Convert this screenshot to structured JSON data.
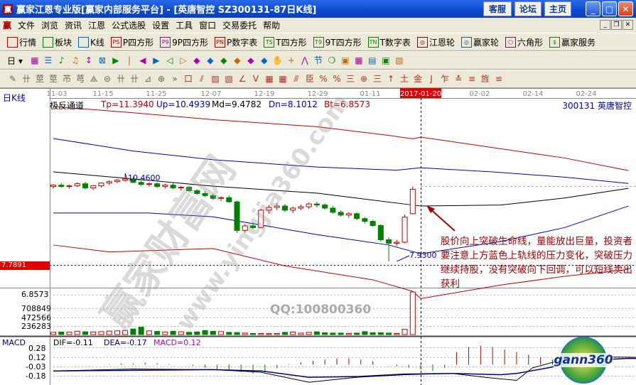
{
  "window": {
    "title": "赢家江恩专业版[赢家内部服务平台] - [英唐智控   SZ300131-87日K线]",
    "buttons": [
      "客服",
      "论坛",
      "主页"
    ]
  },
  "menu": {
    "logo": "赢",
    "items": [
      "文件",
      "浏览",
      "资讯",
      "江恩",
      "公式选股",
      "设置",
      "工具",
      "窗口",
      "交易委托",
      "帮助"
    ]
  },
  "toolbar1": [
    {
      "icon": "quote-table-icon",
      "label": "行情"
    },
    {
      "icon": "sector-blocks-icon",
      "label": "板块"
    },
    {
      "icon": "kline-icon",
      "label": "K线"
    },
    {
      "icon": "p-square-icon",
      "glyph": "PS",
      "label": "P四方形"
    },
    {
      "icon": "9p-square-icon",
      "glyph": "P9",
      "label": "9P四方形"
    },
    {
      "icon": "p-number-table-icon",
      "glyph": "PN",
      "label": "P数字表"
    },
    {
      "icon": "t-square-icon",
      "glyph": "TS",
      "label": "T四方形"
    },
    {
      "icon": "9t-square-icon",
      "glyph": "T9",
      "label": "9T四方形"
    },
    {
      "icon": "t-number-table-icon",
      "glyph": "TN",
      "label": "T数字表"
    },
    {
      "icon": "gann-wheel-icon",
      "glyph": "◎",
      "label": "江恩轮"
    },
    {
      "icon": "yingjia-wheel-icon",
      "glyph": "◎",
      "label": "赢家轮"
    },
    {
      "icon": "hexagon-icon",
      "glyph": "⬡",
      "label": "六角形"
    },
    {
      "icon": "dollar-icon",
      "glyph": "$",
      "label": "赢家服务"
    }
  ],
  "toolbar2": {
    "period": "日",
    "icons": [
      "chart-type-icon",
      "list-icon",
      "indicator-icon",
      "indicator2-icon",
      "candle-select-icon",
      "formula-icon",
      "flag-icon",
      "first-icon",
      "last-icon",
      "left-icon",
      "right-icon",
      "zoom-in-icon",
      "zoom-out-icon",
      "expand-icon",
      "shrink-icon",
      "fit-icon",
      "reset-icon",
      "hand-icon",
      "crosshair-icon",
      "draw-line-icon",
      "section-icon",
      "cycle-icon",
      "calendar-icon",
      "calculator-icon",
      "notes-icon",
      "save-icon",
      "export-icon",
      "print-icon"
    ]
  },
  "toolbar3": {
    "icons": [
      "pen-icon",
      "parallel-icon",
      "gann-fan-icon",
      "gann-fan2-icon",
      "fib-icon",
      "spiral-icon",
      "pitchfork-icon",
      "circle-icon",
      "grid-icon",
      "square-n2-icon",
      "angle-icon",
      "target-icon",
      "more-icon",
      "box-icon",
      "fan-lines-icon",
      "gann-box-icon",
      "gann-grid-icon",
      "ray-icon",
      "wave-icon",
      "table-grid-icon",
      "table-grid2-icon",
      "channel-icon",
      "ruler-icon",
      "percent-line-icon",
      "percent-icon",
      "percent-rule-icon",
      "gold-circle-icon",
      "gold-line-icon",
      "arrow-up-icon",
      "gold-ratio-icon",
      "gold-icon",
      "j-line-icon",
      "f-line-icon",
      "multi-line-icon",
      "speed-line-icon",
      "gann-angle-icon",
      "arc-icon"
    ]
  },
  "dates": [
    "11-03",
    "11-15",
    "11-25",
    "12-07",
    "12-19",
    "12-29",
    "01-11",
    "2017-01-20",
    "02-02",
    "02-14",
    "02-24"
  ],
  "chart": {
    "period_label": "日K线",
    "indicator_name": "极反通道",
    "tp": "Tp=11.3940",
    "up": "Up=10.4939",
    "md": "Md=9.4782",
    "dn": "Dn=8.1012",
    "bt": "Bt=6.8573",
    "stock": "300131  英唐智控",
    "high_label": "10.4600",
    "low_label": "7.9300",
    "cursor_price": "7.7891",
    "cursor_date": "2017-01-20",
    "colors": {
      "up": "#c00000",
      "down": "#008000",
      "tp": "#c00000",
      "upper": "#0000c0",
      "mid": "#000000",
      "lower": "#0000c0",
      "bt": "#c00000"
    }
  },
  "candles": [
    [
      10.08,
      10.15,
      10.02,
      10.12
    ],
    [
      10.12,
      10.18,
      10.05,
      10.08
    ],
    [
      10.08,
      10.14,
      10.03,
      10.1
    ],
    [
      10.1,
      10.2,
      10.06,
      10.16
    ],
    [
      10.16,
      10.22,
      10.0,
      10.04
    ],
    [
      10.04,
      10.12,
      9.98,
      10.1
    ],
    [
      10.1,
      10.2,
      10.05,
      10.18
    ],
    [
      10.18,
      10.26,
      10.12,
      10.22
    ],
    [
      10.22,
      10.3,
      10.18,
      10.26
    ],
    [
      10.26,
      10.46,
      10.22,
      10.3
    ],
    [
      10.3,
      10.36,
      10.18,
      10.2
    ],
    [
      10.2,
      10.26,
      10.1,
      10.14
    ],
    [
      10.14,
      10.2,
      10.08,
      10.16
    ],
    [
      10.16,
      10.2,
      10.04,
      10.08
    ],
    [
      10.08,
      10.16,
      10.02,
      10.12
    ],
    [
      10.12,
      10.18,
      10.0,
      10.04
    ],
    [
      10.04,
      10.1,
      9.96,
      10.06
    ],
    [
      10.06,
      10.1,
      9.92,
      9.96
    ],
    [
      9.96,
      10.0,
      9.84,
      9.88
    ],
    [
      9.88,
      9.95,
      9.78,
      9.82
    ],
    [
      9.82,
      9.88,
      9.7,
      9.74
    ],
    [
      9.74,
      9.8,
      9.66,
      9.76
    ],
    [
      9.76,
      9.82,
      9.62,
      9.64
    ],
    [
      9.64,
      9.68,
      8.75,
      8.82
    ],
    [
      8.82,
      9.0,
      8.75,
      8.95
    ],
    [
      8.95,
      9.05,
      8.85,
      8.9
    ],
    [
      8.9,
      9.45,
      8.88,
      9.4
    ],
    [
      9.4,
      9.55,
      9.3,
      9.48
    ],
    [
      9.48,
      9.6,
      9.4,
      9.52
    ],
    [
      9.52,
      9.58,
      9.35,
      9.4
    ],
    [
      9.4,
      9.5,
      9.32,
      9.46
    ],
    [
      9.46,
      9.56,
      9.4,
      9.5
    ],
    [
      9.5,
      9.62,
      9.44,
      9.58
    ],
    [
      9.58,
      9.64,
      9.48,
      9.55
    ],
    [
      9.55,
      9.6,
      9.42,
      9.46
    ],
    [
      9.46,
      9.52,
      9.3,
      9.34
    ],
    [
      9.34,
      9.4,
      9.22,
      9.26
    ],
    [
      9.26,
      9.34,
      9.18,
      9.3
    ],
    [
      9.3,
      9.34,
      9.12,
      9.16
    ],
    [
      9.16,
      9.2,
      9.02,
      9.08
    ],
    [
      9.08,
      9.12,
      8.92,
      8.96
    ],
    [
      8.96,
      9.0,
      8.5,
      8.55
    ],
    [
      8.55,
      8.62,
      7.93,
      8.45
    ],
    [
      8.45,
      8.55,
      8.38,
      8.48
    ],
    [
      8.48,
      9.28,
      8.45,
      9.2
    ],
    [
      9.3,
      10.08,
      9.28,
      10.0
    ]
  ],
  "channel": {
    "tp": [
      [
        0,
        12.38
      ],
      [
        10,
        12.2
      ],
      [
        20,
        12.0
      ],
      [
        33,
        11.8
      ],
      [
        42,
        11.55
      ],
      [
        45,
        11.45
      ],
      [
        46,
        11.5
      ],
      [
        55,
        11.2
      ],
      [
        64,
        10.9
      ],
      [
        72,
        10.54
      ]
    ],
    "up": [
      [
        0,
        11.46
      ],
      [
        10,
        11.1
      ],
      [
        20,
        10.85
      ],
      [
        33,
        10.64
      ],
      [
        43,
        10.55
      ],
      [
        46,
        10.62
      ],
      [
        55,
        10.5
      ],
      [
        64,
        10.35
      ],
      [
        72,
        10.17
      ]
    ],
    "md": [
      [
        0,
        10.5
      ],
      [
        10,
        10.3
      ],
      [
        20,
        10.09
      ],
      [
        33,
        9.89
      ],
      [
        46,
        9.52
      ],
      [
        56,
        9.55
      ],
      [
        64,
        9.75
      ],
      [
        72,
        10.03
      ]
    ],
    "dn": [
      [
        0,
        9.32
      ],
      [
        12,
        9.32
      ],
      [
        20,
        9.21
      ],
      [
        33,
        8.7
      ],
      [
        42,
        8.4
      ],
      [
        46,
        8.15
      ],
      [
        56,
        8.5
      ],
      [
        64,
        8.9
      ],
      [
        72,
        9.52
      ]
    ],
    "bt": [
      [
        0,
        8.4
      ],
      [
        7,
        8.2
      ],
      [
        20,
        8.3
      ],
      [
        29,
        7.8
      ],
      [
        40,
        7.4
      ],
      [
        45,
        7.07
      ],
      [
        46,
        6.86
      ],
      [
        56,
        7.25
      ],
      [
        64,
        7.5
      ],
      [
        72,
        7.7
      ]
    ]
  },
  "volume": {
    "ticks": [
      "708849",
      "472566",
      "236283"
    ],
    "bt_label": "6.8573",
    "values": [
      60000,
      70000,
      65000,
      90000,
      75000,
      70000,
      80000,
      95000,
      100000,
      110000,
      150000,
      200000,
      100000,
      85000,
      70000,
      90000,
      75000,
      60000,
      72000,
      110000,
      90000,
      80000,
      60000,
      55000,
      40000,
      30000,
      30000,
      25000,
      30000,
      60000,
      70000,
      40000,
      60000,
      75000,
      50000,
      40000,
      40000,
      30000,
      40000,
      80000,
      50000,
      50000,
      40000,
      30000,
      140000,
      1150000
    ]
  },
  "macd": {
    "label": "MACD",
    "dif": "DIF=-0.11",
    "dea": "DEA=-0.17",
    "macd": "MACD=0.12",
    "ticks": [
      "0.28",
      "0.12",
      "-0.03",
      "-0.18"
    ],
    "dif_line": [
      [
        0,
        -0.1
      ],
      [
        10,
        -0.07
      ],
      [
        20,
        -0.08
      ],
      [
        26,
        -0.12
      ],
      [
        32,
        -0.28
      ],
      [
        38,
        -0.2
      ],
      [
        44,
        -0.16
      ],
      [
        50,
        -0.14
      ],
      [
        54,
        -0.2
      ],
      [
        58,
        -0.25
      ],
      [
        60,
        -0.05
      ],
      [
        65,
        0.12
      ],
      [
        72,
        0.12
      ],
      [
        80,
        0.08
      ]
    ],
    "dea_line": [
      [
        0,
        -0.1
      ],
      [
        10,
        -0.09
      ],
      [
        20,
        -0.08
      ],
      [
        26,
        -0.1
      ],
      [
        32,
        -0.2
      ],
      [
        38,
        -0.19
      ],
      [
        44,
        -0.15
      ],
      [
        50,
        -0.14
      ],
      [
        56,
        -0.16
      ],
      [
        58,
        -0.14
      ],
      [
        62,
        -0.05
      ],
      [
        66,
        0.06
      ],
      [
        72,
        0.1
      ],
      [
        80,
        0.08
      ]
    ],
    "hist": [
      0,
      0,
      0.01,
      0.02,
      0.02,
      0.03,
      0.02,
      0.01,
      0,
      -0.02,
      -0.05,
      -0.08,
      -0.1,
      -0.12,
      -0.14,
      -0.12,
      -0.06,
      0.01,
      0.04,
      0.06,
      0.08,
      0.1,
      0.1,
      0.08,
      0.05,
      0,
      -0.03,
      -0.05,
      -0.08,
      -0.1,
      -0.05,
      0.2,
      0.28,
      0.3,
      0.28,
      0.24,
      0.2,
      0.16,
      0.12,
      0.08,
      0.05,
      0.02,
      0.01
    ]
  },
  "annotation": "股价向上突破生命线，量能放出巨量，投资者要注意上方蓝色上轨线的压力变化，突破压力继续持股，没有突破向下回调，可以短线卖出获利",
  "watermarks": {
    "site": "赢家财富网",
    "url": "www.yingjia360.com",
    "qq": "QQ:100800360",
    "logo": "gann360"
  }
}
